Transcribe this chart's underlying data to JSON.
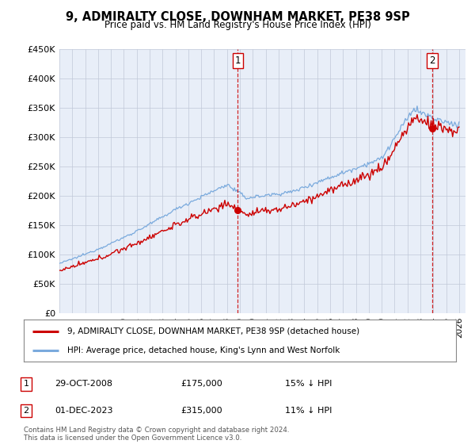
{
  "title": "9, ADMIRALTY CLOSE, DOWNHAM MARKET, PE38 9SP",
  "subtitle": "Price paid vs. HM Land Registry's House Price Index (HPI)",
  "ylim": [
    0,
    450000
  ],
  "yticks": [
    0,
    50000,
    100000,
    150000,
    200000,
    250000,
    300000,
    350000,
    400000,
    450000
  ],
  "ytick_labels": [
    "£0",
    "£50K",
    "£100K",
    "£150K",
    "£200K",
    "£250K",
    "£300K",
    "£350K",
    "£400K",
    "£450K"
  ],
  "sale_year1": 2008.833,
  "sale_year2": 2023.917,
  "sale_price1": 175000,
  "sale_price2": 315000,
  "vline_color": "#cc0000",
  "sale_marker_color": "#cc0000",
  "hpi_line_color": "#7aaadd",
  "property_line_color": "#cc0000",
  "legend_label_property": "9, ADMIRALTY CLOSE, DOWNHAM MARKET, PE38 9SP (detached house)",
  "legend_label_hpi": "HPI: Average price, detached house, King's Lynn and West Norfolk",
  "footer": "Contains HM Land Registry data © Crown copyright and database right 2024.\nThis data is licensed under the Open Government Licence v3.0.",
  "background_color": "#e8eef8",
  "grid_color": "#c0c8d8",
  "xlim_start": 1995,
  "xlim_end": 2026.5
}
